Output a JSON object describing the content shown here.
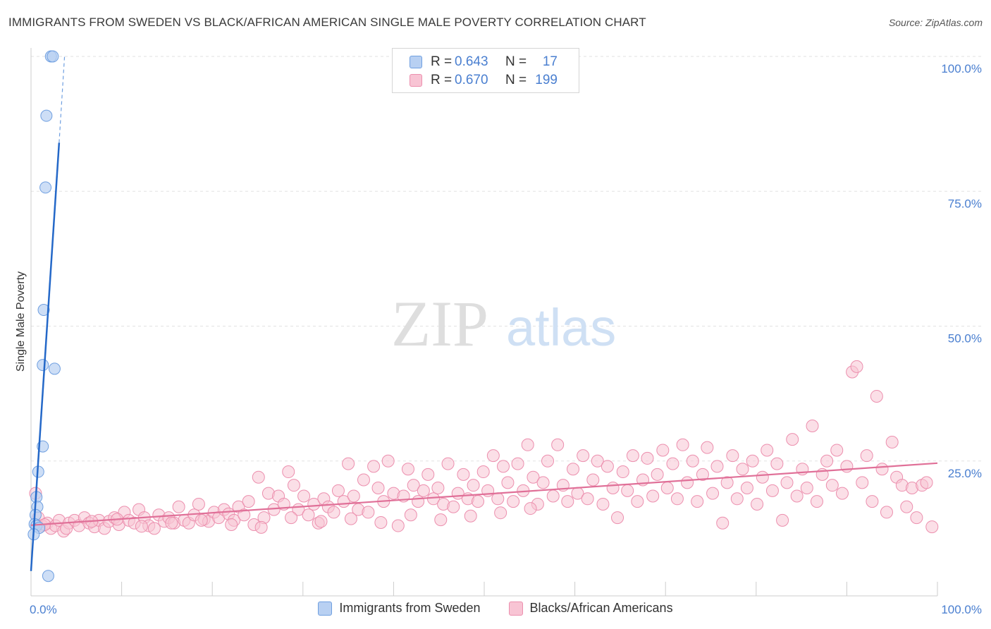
{
  "header": {
    "title": "IMMIGRANTS FROM SWEDEN VS BLACK/AFRICAN AMERICAN SINGLE MALE POVERTY CORRELATION CHART",
    "source": "Source: ZipAtlas.com"
  },
  "watermark": {
    "zip": "ZIP",
    "atlas": "atlas"
  },
  "legend": {
    "rows": [
      {
        "r_label": "R =",
        "r_value": "0.643",
        "n_label": "N =",
        "n_value": "17"
      },
      {
        "r_label": "R =",
        "r_value": "0.670",
        "n_label": "N =",
        "n_value": "199"
      }
    ]
  },
  "bottom_legend": {
    "series_a": "Immigrants from Sweden",
    "series_b": "Blacks/African Americans"
  },
  "colors": {
    "blue_fill": "#b8d0f2",
    "blue_stroke": "#6f9fe0",
    "blue_line": "#2468c8",
    "pink_fill": "#f8c4d4",
    "pink_stroke": "#ec8fae",
    "pink_line": "#e07098",
    "tick_text": "#4a7fd0",
    "grid": "#e2e2e2"
  },
  "chart_data": {
    "type": "scatter",
    "title": "IMMIGRANTS FROM SWEDEN VS BLACK/AFRICAN AMERICAN SINGLE MALE POVERTY CORRELATION CHART",
    "xlabel": "",
    "ylabel": "Single Male Poverty",
    "xlim": [
      0,
      100
    ],
    "ylim": [
      0,
      100
    ],
    "x_tick_labels": [
      "0.0%",
      "100.0%"
    ],
    "y_ticks": [
      25,
      50,
      75,
      100
    ],
    "y_tick_labels": [
      "25.0%",
      "50.0%",
      "75.0%",
      "100.0%"
    ],
    "grid": true,
    "legend_position": "top-center",
    "series": [
      {
        "name": "Immigrants from Sweden",
        "color": "#6f9fe0",
        "trend": {
          "x0": 0.0,
          "y0": 4.6,
          "x1": 3.1,
          "y1": 84.0,
          "dashed_to": {
            "x": 3.7,
            "y": 100.0
          }
        },
        "x": [
          2.2,
          2.4,
          1.7,
          1.6,
          1.4,
          1.3,
          2.6,
          1.3,
          0.8,
          0.6,
          0.7,
          0.5,
          0.4,
          0.6,
          0.9,
          0.3,
          1.9
        ],
        "y": [
          100.0,
          100.0,
          89.0,
          75.7,
          53.0,
          42.8,
          42.1,
          27.7,
          23.0,
          18.3,
          16.5,
          15.0,
          13.3,
          13.0,
          12.6,
          11.4,
          3.7
        ]
      },
      {
        "name": "Blacks/African Americans",
        "color": "#ec8fae",
        "trend": {
          "x0": 0.0,
          "y0": 13.1,
          "x1": 100.0,
          "y1": 24.6
        },
        "x": [
          0.5,
          0.8,
          1.2,
          1.8,
          2.2,
          2.7,
          3.1,
          3.6,
          4.2,
          4.8,
          5.3,
          5.9,
          6.4,
          7.0,
          7.5,
          8.1,
          8.6,
          9.2,
          9.7,
          10.3,
          10.8,
          11.4,
          11.9,
          12.5,
          13.0,
          13.6,
          14.1,
          14.7,
          15.2,
          15.8,
          16.3,
          16.9,
          17.4,
          18.0,
          18.5,
          19.1,
          19.6,
          20.2,
          20.7,
          21.3,
          21.8,
          22.4,
          22.9,
          23.5,
          24.0,
          24.6,
          25.1,
          25.7,
          26.2,
          26.8,
          27.3,
          27.9,
          28.4,
          29.0,
          29.5,
          30.1,
          30.6,
          31.2,
          31.7,
          32.3,
          32.8,
          33.4,
          33.9,
          34.5,
          35.0,
          35.6,
          36.1,
          36.7,
          37.2,
          37.8,
          38.3,
          38.9,
          39.4,
          40.0,
          40.5,
          41.1,
          41.6,
          42.2,
          42.7,
          43.3,
          43.8,
          44.4,
          44.9,
          45.5,
          46.0,
          46.6,
          47.1,
          47.7,
          48.2,
          48.8,
          49.3,
          49.9,
          50.4,
          51.0,
          51.5,
          52.1,
          52.6,
          53.2,
          53.7,
          54.3,
          54.8,
          55.4,
          55.9,
          56.5,
          57.0,
          57.6,
          58.1,
          58.7,
          59.2,
          59.8,
          60.3,
          60.9,
          61.4,
          62.0,
          62.5,
          63.1,
          63.6,
          64.2,
          64.7,
          65.3,
          65.8,
          66.4,
          66.9,
          67.5,
          68.0,
          68.6,
          69.1,
          69.7,
          70.2,
          70.8,
          71.3,
          71.9,
          72.4,
          73.0,
          73.5,
          74.1,
          74.6,
          75.2,
          75.7,
          76.3,
          76.8,
          77.4,
          77.9,
          78.5,
          79.0,
          79.6,
          80.1,
          80.7,
          81.2,
          81.8,
          82.3,
          82.9,
          83.4,
          84.0,
          84.5,
          85.1,
          85.6,
          86.2,
          86.7,
          87.3,
          87.8,
          88.4,
          88.9,
          89.5,
          90.0,
          90.6,
          91.1,
          91.7,
          92.2,
          92.8,
          93.3,
          93.9,
          94.4,
          95.0,
          95.5,
          96.1,
          96.6,
          97.2,
          97.7,
          98.3,
          98.8,
          99.4,
          1.5,
          3.9,
          6.7,
          9.5,
          12.2,
          15.5,
          18.8,
          22.1,
          25.4,
          28.7,
          32.0,
          35.3,
          38.6,
          41.9,
          45.2,
          48.5,
          51.8,
          55.1
        ],
        "y": [
          19.0,
          14.5,
          13.0,
          13.5,
          12.5,
          13.0,
          14.0,
          12.0,
          13.5,
          14.0,
          13.0,
          14.5,
          13.5,
          12.8,
          14.0,
          12.5,
          13.8,
          14.5,
          13.2,
          15.5,
          14.0,
          13.5,
          16.0,
          14.5,
          13.0,
          12.5,
          15.0,
          13.8,
          14.5,
          13.5,
          16.5,
          14.0,
          13.5,
          15.0,
          17.0,
          14.2,
          13.8,
          15.5,
          14.5,
          16.0,
          15.2,
          14.0,
          16.5,
          15.0,
          17.5,
          13.2,
          22.0,
          14.5,
          19.0,
          16.0,
          18.5,
          17.0,
          23.0,
          20.5,
          16.0,
          18.5,
          15.0,
          17.0,
          13.5,
          18.0,
          16.5,
          15.5,
          19.5,
          17.5,
          24.5,
          18.5,
          16.0,
          21.5,
          15.5,
          24.0,
          20.0,
          17.5,
          25.0,
          19.0,
          13.0,
          18.5,
          23.5,
          20.5,
          17.5,
          19.5,
          22.5,
          18.0,
          20.0,
          17.0,
          24.5,
          16.5,
          19.0,
          22.5,
          18.0,
          20.5,
          17.5,
          23.0,
          19.5,
          26.0,
          18.0,
          24.0,
          21.0,
          17.5,
          24.5,
          19.5,
          28.0,
          22.0,
          17.0,
          21.0,
          25.0,
          18.5,
          28.0,
          20.5,
          17.5,
          23.5,
          19.0,
          26.0,
          18.0,
          21.5,
          25.0,
          17.0,
          24.0,
          20.0,
          14.5,
          23.0,
          19.5,
          26.0,
          17.5,
          21.5,
          25.5,
          18.5,
          22.5,
          27.0,
          20.0,
          24.5,
          18.0,
          28.0,
          21.0,
          25.0,
          17.5,
          22.5,
          27.5,
          19.0,
          24.0,
          13.5,
          21.0,
          26.0,
          18.0,
          23.5,
          20.0,
          25.0,
          17.0,
          22.0,
          27.0,
          19.5,
          24.5,
          14.0,
          21.0,
          29.0,
          18.5,
          23.5,
          20.0,
          31.5,
          17.5,
          22.5,
          25.0,
          20.5,
          27.0,
          19.0,
          24.0,
          41.5,
          42.5,
          21.0,
          26.0,
          17.5,
          37.0,
          23.5,
          15.5,
          28.5,
          22.0,
          20.5,
          16.5,
          20.0,
          14.5,
          20.5,
          21.0,
          12.8,
          13.2,
          12.5,
          13.8,
          14.2,
          12.9,
          13.5,
          14.0,
          13.2,
          12.7,
          14.5,
          13.8,
          14.3,
          13.6,
          15.0,
          14.1,
          14.8,
          15.4,
          16.2
        ]
      }
    ]
  }
}
